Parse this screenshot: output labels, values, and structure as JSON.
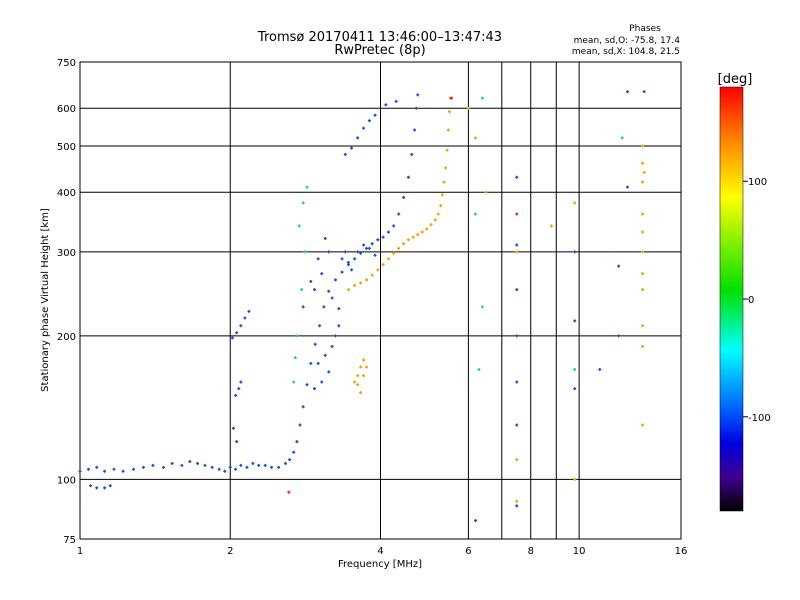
{
  "header": {
    "title": "Tromsø 20170411 13:46:00–13:47:43",
    "subtitle": "RwPretec (8p)",
    "phases_title": "Phases",
    "phases_o": "mean, sd,O: -75.8, 17.4",
    "phases_x": "mean, sd,X: 104.8, 21.5"
  },
  "colorbar": {
    "unit": "[deg]",
    "range": [
      -180,
      180
    ],
    "ticks": [
      "100",
      "0",
      "-100"
    ],
    "tick_values": [
      100,
      0,
      -100
    ]
  },
  "chart_data": {
    "type": "scatter",
    "title": "Tromsø 20170411 13:46:00–13:47:43",
    "subtitle": "RwPretec (8p)",
    "xlabel": "Frequency [MHz]",
    "ylabel": "Stationary phase Virtual Height [km]",
    "xscale": "log",
    "yscale": "log",
    "xlim": [
      1,
      16
    ],
    "ylim": [
      75,
      750
    ],
    "xticks": [
      1,
      2,
      4,
      6,
      8,
      10,
      16
    ],
    "xtick_labels": [
      "1",
      "2",
      "4",
      "6",
      "8",
      "10",
      "16"
    ],
    "minor_xticks": [
      7,
      9
    ],
    "yticks": [
      75,
      100,
      200,
      300,
      400,
      500,
      600,
      750
    ],
    "ytick_labels": [
      "75",
      "100",
      "200",
      "300",
      "400",
      "500",
      "600",
      "750"
    ],
    "grid": true,
    "color_map": "phase [deg], -180 black/violet → blue → cyan → green → yellow → red 180",
    "series": [
      {
        "phase_mean": -75.8,
        "phase_sd": 17.4,
        "color": "#1a4fd8",
        "points": [
          [
            1.0,
            104
          ],
          [
            1.04,
            105
          ],
          [
            1.08,
            106
          ],
          [
            1.12,
            104
          ],
          [
            1.17,
            105
          ],
          [
            1.22,
            104
          ],
          [
            1.28,
            105
          ],
          [
            1.34,
            106
          ],
          [
            1.4,
            107
          ],
          [
            1.47,
            106
          ],
          [
            1.53,
            108
          ],
          [
            1.6,
            107
          ],
          [
            1.66,
            109
          ],
          [
            1.72,
            108
          ],
          [
            1.78,
            107
          ],
          [
            1.84,
            106
          ],
          [
            1.9,
            105
          ],
          [
            1.95,
            104
          ],
          [
            2.0,
            106
          ],
          [
            2.05,
            105
          ],
          [
            2.1,
            107
          ],
          [
            2.16,
            106
          ],
          [
            2.22,
            108
          ],
          [
            2.28,
            107
          ],
          [
            2.35,
            107
          ],
          [
            2.42,
            106
          ],
          [
            2.5,
            106
          ],
          [
            2.58,
            108
          ],
          [
            2.63,
            110
          ],
          [
            2.68,
            114
          ],
          [
            2.72,
            120
          ],
          [
            2.76,
            130
          ],
          [
            2.8,
            142
          ],
          [
            2.85,
            158
          ],
          [
            2.9,
            175
          ],
          [
            2.96,
            192
          ],
          [
            3.02,
            210
          ],
          [
            3.08,
            230
          ],
          [
            3.15,
            248
          ],
          [
            3.25,
            262
          ],
          [
            3.35,
            272
          ],
          [
            3.45,
            282
          ],
          [
            3.55,
            290
          ],
          [
            3.65,
            298
          ],
          [
            3.75,
            305
          ],
          [
            3.85,
            312
          ],
          [
            3.95,
            318
          ],
          [
            4.05,
            322
          ],
          [
            4.15,
            330
          ],
          [
            4.25,
            340
          ],
          [
            4.35,
            360
          ],
          [
            4.45,
            390
          ],
          [
            4.55,
            430
          ],
          [
            4.62,
            480
          ],
          [
            4.68,
            540
          ],
          [
            4.72,
            600
          ],
          [
            4.75,
            640
          ],
          [
            1.05,
            97
          ],
          [
            1.08,
            96
          ],
          [
            1.12,
            96
          ],
          [
            1.15,
            97
          ],
          [
            2.02,
            198
          ],
          [
            2.06,
            203
          ],
          [
            2.1,
            210
          ],
          [
            2.14,
            218
          ],
          [
            2.18,
            225
          ],
          [
            2.05,
            150
          ],
          [
            2.08,
            155
          ],
          [
            2.1,
            160
          ],
          [
            2.03,
            128
          ],
          [
            2.06,
            120
          ],
          [
            2.8,
            230
          ],
          [
            2.9,
            260
          ],
          [
            3.0,
            290
          ],
          [
            3.1,
            320
          ],
          [
            2.95,
            250
          ],
          [
            3.05,
            270
          ],
          [
            3.15,
            300
          ],
          [
            3.2,
            240
          ],
          [
            3.3,
            228
          ],
          [
            2.95,
            155
          ],
          [
            3.05,
            160
          ],
          [
            3.15,
            168
          ],
          [
            3.0,
            175
          ],
          [
            3.1,
            182
          ],
          [
            3.2,
            190
          ],
          [
            3.25,
            200
          ],
          [
            3.3,
            210
          ],
          [
            3.35,
            290
          ],
          [
            3.4,
            300
          ],
          [
            3.45,
            285
          ],
          [
            3.5,
            275
          ],
          [
            3.6,
            300
          ],
          [
            3.7,
            310
          ],
          [
            3.8,
            305
          ],
          [
            3.9,
            295
          ],
          [
            3.4,
            480
          ],
          [
            3.5,
            495
          ],
          [
            3.6,
            520
          ],
          [
            3.7,
            545
          ],
          [
            3.8,
            565
          ],
          [
            3.9,
            580
          ],
          [
            4.1,
            610
          ],
          [
            4.3,
            620
          ],
          [
            6.2,
            82
          ],
          [
            7.5,
            88
          ],
          [
            7.5,
            130
          ],
          [
            7.5,
            160
          ],
          [
            7.5,
            200
          ],
          [
            7.5,
            250
          ],
          [
            7.5,
            310
          ],
          [
            7.5,
            430
          ],
          [
            9.8,
            155
          ],
          [
            9.8,
            215
          ],
          [
            9.8,
            300
          ],
          [
            11.0,
            170
          ],
          [
            12.0,
            200
          ],
          [
            12.0,
            280
          ],
          [
            12.5,
            410
          ],
          [
            12.5,
            650
          ],
          [
            13.5,
            650
          ]
        ]
      },
      {
        "phase_mean": 104.8,
        "phase_sd": 21.5,
        "color": "#f0a000",
        "points": [
          [
            3.45,
            250
          ],
          [
            3.55,
            255
          ],
          [
            3.65,
            258
          ],
          [
            3.75,
            262
          ],
          [
            3.85,
            268
          ],
          [
            3.95,
            275
          ],
          [
            4.05,
            282
          ],
          [
            4.15,
            290
          ],
          [
            4.25,
            298
          ],
          [
            4.35,
            305
          ],
          [
            4.45,
            312
          ],
          [
            4.55,
            318
          ],
          [
            4.65,
            322
          ],
          [
            4.75,
            326
          ],
          [
            4.85,
            330
          ],
          [
            4.95,
            335
          ],
          [
            5.05,
            342
          ],
          [
            5.15,
            350
          ],
          [
            5.22,
            360
          ],
          [
            5.28,
            375
          ],
          [
            5.32,
            395
          ],
          [
            5.36,
            420
          ],
          [
            5.4,
            450
          ],
          [
            5.44,
            490
          ],
          [
            5.47,
            540
          ],
          [
            5.5,
            590
          ],
          [
            5.52,
            630
          ],
          [
            3.55,
            160
          ],
          [
            3.6,
            165
          ],
          [
            3.65,
            172
          ],
          [
            3.7,
            178
          ],
          [
            3.75,
            172
          ],
          [
            3.7,
            165
          ],
          [
            3.6,
            158
          ],
          [
            3.65,
            152
          ],
          [
            6.0,
            600
          ],
          [
            6.2,
            520
          ],
          [
            6.5,
            400
          ],
          [
            7.5,
            110
          ],
          [
            7.5,
            90
          ],
          [
            7.5,
            300
          ],
          [
            9.8,
            100
          ],
          [
            9.8,
            380
          ],
          [
            8.8,
            340
          ],
          [
            13.4,
            130
          ],
          [
            13.4,
            190
          ],
          [
            13.4,
            210
          ],
          [
            13.4,
            250
          ],
          [
            13.4,
            270
          ],
          [
            13.4,
            300
          ],
          [
            13.4,
            330
          ],
          [
            13.4,
            360
          ],
          [
            13.4,
            420
          ],
          [
            13.4,
            460
          ],
          [
            13.4,
            500
          ],
          [
            13.5,
            440
          ]
        ]
      },
      {
        "phase_mean": 0,
        "phase_sd": 0,
        "color": "#20c0e0",
        "points": [
          [
            2.75,
            340
          ],
          [
            2.8,
            380
          ],
          [
            2.85,
            410
          ],
          [
            2.82,
            300
          ],
          [
            2.78,
            250
          ],
          [
            2.72,
            200
          ],
          [
            2.7,
            180
          ],
          [
            2.68,
            160
          ],
          [
            6.2,
            360
          ],
          [
            6.4,
            630
          ],
          [
            6.3,
            170
          ],
          [
            6.4,
            230
          ],
          [
            12.2,
            520
          ],
          [
            9.8,
            170
          ]
        ]
      },
      {
        "phase_mean": 180,
        "phase_sd": 0,
        "color": "#ff2020",
        "points": [
          [
            2.62,
            94
          ],
          [
            7.5,
            360
          ],
          [
            5.55,
            630
          ]
        ]
      }
    ]
  }
}
